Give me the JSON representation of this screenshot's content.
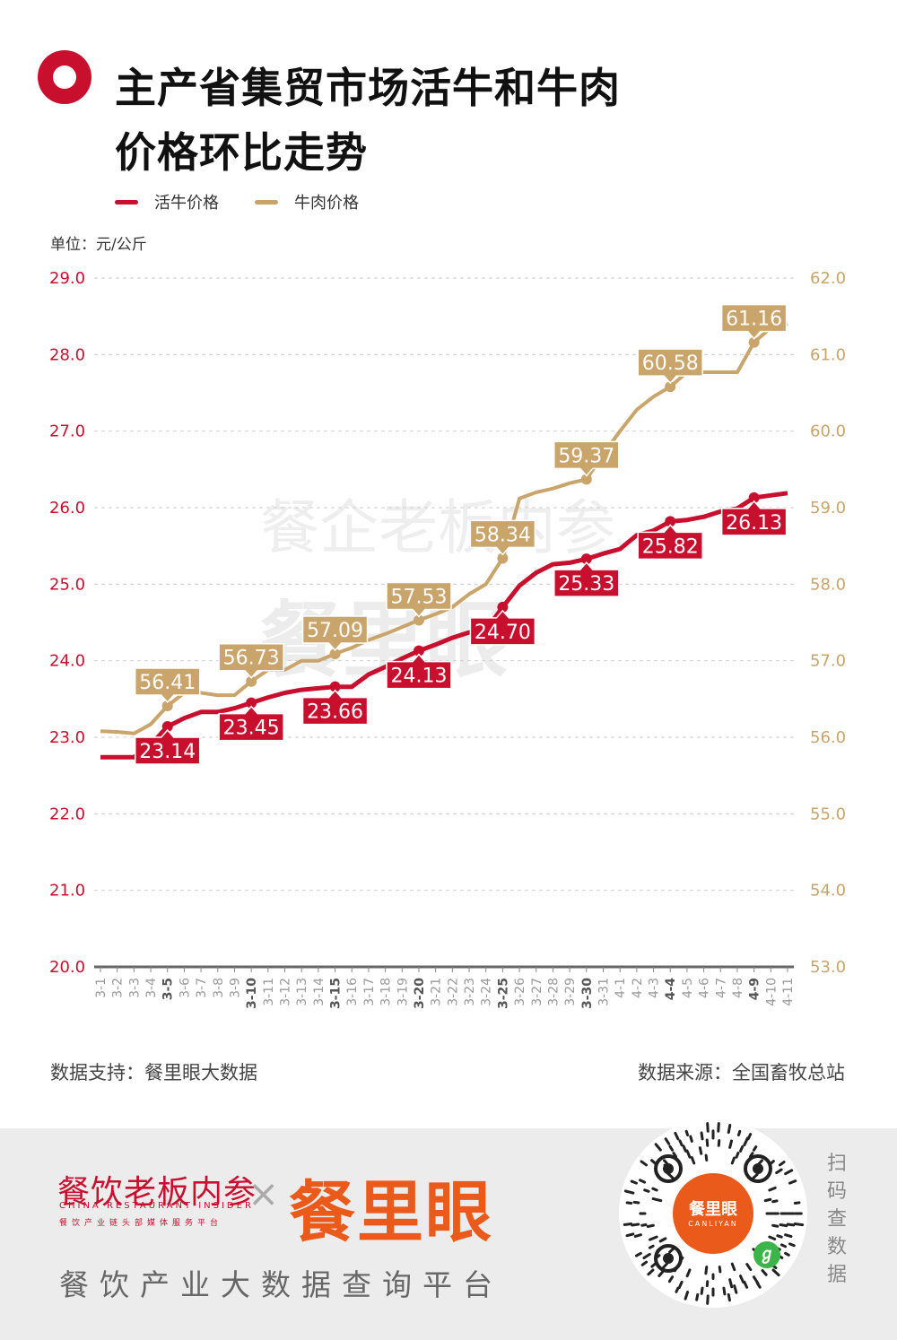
{
  "header": {
    "title_line1": "主产省集贸市场活牛和牛肉",
    "title_line2": "价格环比走势"
  },
  "legend": {
    "live": "活牛价格",
    "beef": "牛肉价格"
  },
  "unit_label": "单位：元/公斤",
  "watermark": {
    "brand_cn": "餐企老板内参",
    "brand_big": "餐里眼"
  },
  "footer": {
    "left": "数据支持：餐里眼大数据",
    "right": "数据来源：全国畜牧总站"
  },
  "bottom_band": {
    "brand_cn": "餐饮老板内参",
    "brand_en": "CHINA RESTAURANT INSIDER",
    "brand_tag": "餐饮产业链头部媒体服务平台",
    "times": "×",
    "brand_big": "餐里眼",
    "platform": "餐饮产业大数据查询平台",
    "qr_center": "餐里眼",
    "qr_center_en": "CANLIYAN",
    "scan": "扫码查数据"
  },
  "colors": {
    "live": "#c8102e",
    "beef": "#c9a46b",
    "qr_accent": "#ea5b1b"
  },
  "chart_data": {
    "type": "line",
    "title": "主产省集贸市场活牛和牛肉价格环比走势",
    "unit": "元/公斤",
    "categories": [
      "3-1",
      "3-2",
      "3-3",
      "3-4",
      "3-5",
      "3-6",
      "3-7",
      "3-8",
      "3-9",
      "3-10",
      "3-11",
      "3-12",
      "3-13",
      "3-14",
      "3-15",
      "3-16",
      "3-17",
      "3-18",
      "3-19",
      "3-20",
      "3-21",
      "3-22",
      "3-23",
      "3-24",
      "3-25",
      "3-26",
      "3-27",
      "3-28",
      "3-29",
      "3-30",
      "3-31",
      "4-1",
      "4-2",
      "4-3",
      "4-4",
      "4-5",
      "4-6",
      "4-7",
      "4-8",
      "4-9",
      "4-10",
      "4-11"
    ],
    "bold_ticks": [
      "3-5",
      "3-10",
      "3-15",
      "3-20",
      "3-25",
      "3-30",
      "4-4",
      "4-9"
    ],
    "y_left": {
      "min": 20.0,
      "max": 29.0,
      "ticks": [
        "20.0",
        "21.0",
        "22.0",
        "23.0",
        "24.0",
        "25.0",
        "26.0",
        "27.0",
        "28.0",
        "29.0"
      ]
    },
    "y_right": {
      "min": 53.0,
      "max": 62.0,
      "ticks": [
        "53.0",
        "54.0",
        "55.0",
        "56.0",
        "57.0",
        "58.0",
        "59.0",
        "60.0",
        "61.0",
        "62.0"
      ]
    },
    "grid": "dashed horizontal",
    "legend_position": "top-left",
    "series": [
      {
        "name": "活牛价格",
        "axis": "left",
        "values": [
          22.74,
          22.74,
          22.74,
          22.9,
          23.14,
          23.25,
          23.33,
          23.33,
          23.38,
          23.45,
          23.52,
          23.58,
          23.62,
          23.64,
          23.66,
          23.66,
          23.82,
          23.92,
          24.03,
          24.13,
          24.21,
          24.3,
          24.37,
          24.4,
          24.7,
          24.98,
          25.15,
          25.26,
          25.28,
          25.33,
          25.4,
          25.46,
          25.64,
          25.7,
          25.82,
          25.84,
          25.88,
          25.95,
          25.99,
          26.13,
          26.16,
          26.19
        ],
        "labels": [
          {
            "at": "3-5",
            "text": "23.14"
          },
          {
            "at": "3-10",
            "text": "23.45"
          },
          {
            "at": "3-15",
            "text": "23.66"
          },
          {
            "at": "3-20",
            "text": "24.13"
          },
          {
            "at": "3-25",
            "text": "24.70"
          },
          {
            "at": "3-30",
            "text": "25.33"
          },
          {
            "at": "4-4",
            "text": "25.82"
          },
          {
            "at": "4-9",
            "text": "26.13"
          }
        ]
      },
      {
        "name": "牛肉价格",
        "axis": "right",
        "values": [
          56.08,
          56.07,
          56.05,
          56.17,
          56.41,
          56.58,
          56.58,
          56.55,
          56.55,
          56.73,
          56.88,
          56.88,
          57.0,
          57.0,
          57.09,
          57.17,
          57.27,
          57.35,
          57.44,
          57.53,
          57.61,
          57.7,
          57.87,
          58.0,
          58.34,
          59.12,
          59.2,
          59.25,
          59.32,
          59.37,
          59.7,
          60.0,
          60.28,
          60.45,
          60.58,
          60.77,
          60.77,
          60.77,
          60.77,
          61.16,
          61.35,
          61.4
        ],
        "labels": [
          {
            "at": "3-5",
            "text": "56.41"
          },
          {
            "at": "3-10",
            "text": "56.73"
          },
          {
            "at": "3-15",
            "text": "57.09"
          },
          {
            "at": "3-20",
            "text": "57.53"
          },
          {
            "at": "3-25",
            "text": "58.34"
          },
          {
            "at": "3-30",
            "text": "59.37"
          },
          {
            "at": "4-4",
            "text": "60.58"
          },
          {
            "at": "4-9",
            "text": "61.16"
          }
        ]
      }
    ]
  }
}
